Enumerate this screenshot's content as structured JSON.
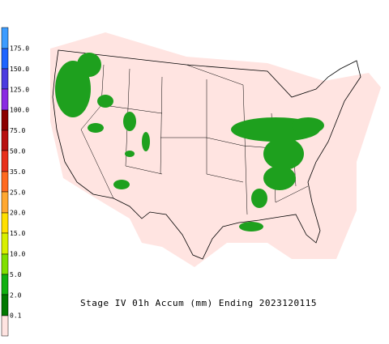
{
  "legend": {
    "labels": [
      "175.0",
      "150.0",
      "125.0",
      "100.0",
      "75.0",
      "50.0",
      "35.0",
      "25.0",
      "20.0",
      "15.0",
      "10.0",
      "5.0",
      "2.0",
      "0.1"
    ]
  },
  "title": "Stage IV 01h Accum (mm) Ending 2023120115"
}
